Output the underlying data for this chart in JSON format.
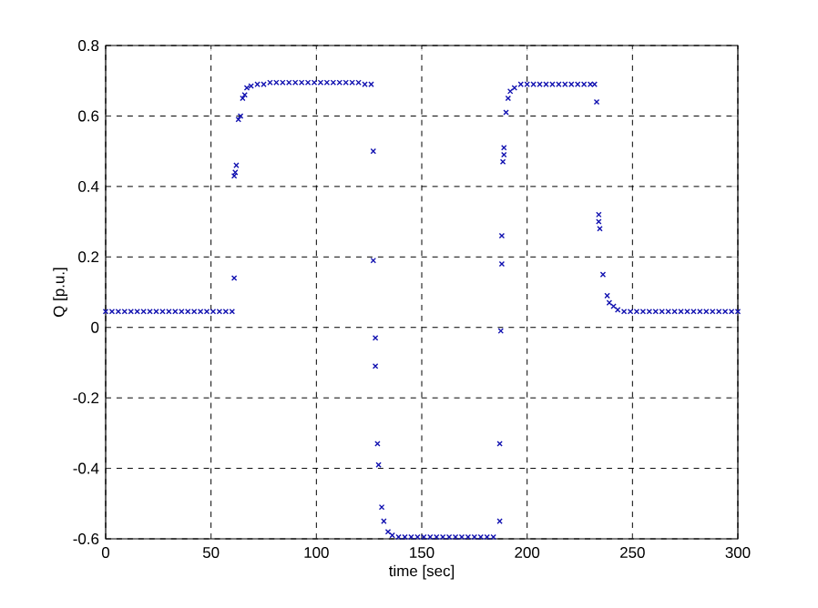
{
  "chart_data": {
    "type": "scatter",
    "xlabel": "time [sec]",
    "ylabel": "Q [p.u.]",
    "xlim": [
      0,
      300
    ],
    "ylim": [
      -0.6,
      0.8
    ],
    "xticks": [
      0,
      50,
      100,
      150,
      200,
      250,
      300
    ],
    "yticks": [
      -0.6,
      -0.4,
      -0.2,
      0,
      0.2,
      0.4,
      0.6,
      0.8
    ],
    "grid": true,
    "marker": "cross",
    "series": [
      {
        "color": "#1010b0",
        "x": [
          0,
          3,
          6,
          9,
          12,
          15,
          18,
          21,
          24,
          27,
          30,
          33,
          36,
          39,
          42,
          45,
          48,
          51,
          54,
          57,
          60,
          61,
          61,
          61.5,
          62,
          63,
          64,
          65,
          66,
          67,
          69,
          72,
          75,
          78,
          81,
          84,
          87,
          90,
          93,
          96,
          99,
          102,
          105,
          108,
          111,
          114,
          117,
          120,
          123,
          126,
          127,
          127,
          128,
          128,
          129,
          129.5,
          131,
          132,
          134,
          136,
          139,
          142,
          145,
          148,
          151,
          154,
          157,
          160,
          163,
          166,
          169,
          172,
          175,
          178,
          181,
          184,
          187,
          187,
          187.5,
          188,
          188,
          188.5,
          189,
          189,
          190,
          191,
          192,
          194,
          197,
          200,
          203,
          206,
          209,
          212,
          215,
          218,
          221,
          224,
          227,
          230,
          232,
          233,
          234,
          234,
          234.5,
          236,
          238,
          239,
          241,
          243,
          246,
          249,
          252,
          255,
          258,
          261,
          264,
          267,
          270,
          273,
          276,
          279,
          282,
          285,
          288,
          291,
          294,
          297,
          300
        ],
        "values": [
          0.045,
          0.045,
          0.045,
          0.045,
          0.045,
          0.045,
          0.045,
          0.045,
          0.045,
          0.045,
          0.045,
          0.045,
          0.045,
          0.045,
          0.045,
          0.045,
          0.045,
          0.045,
          0.045,
          0.045,
          0.045,
          0.14,
          0.43,
          0.44,
          0.46,
          0.59,
          0.6,
          0.65,
          0.66,
          0.68,
          0.685,
          0.69,
          0.69,
          0.695,
          0.695,
          0.695,
          0.695,
          0.695,
          0.695,
          0.695,
          0.695,
          0.695,
          0.695,
          0.695,
          0.695,
          0.695,
          0.695,
          0.695,
          0.69,
          0.69,
          0.5,
          0.19,
          -0.03,
          -0.11,
          -0.33,
          -0.39,
          -0.51,
          -0.55,
          -0.58,
          -0.59,
          -0.595,
          -0.595,
          -0.595,
          -0.595,
          -0.595,
          -0.595,
          -0.595,
          -0.595,
          -0.595,
          -0.595,
          -0.595,
          -0.595,
          -0.595,
          -0.595,
          -0.595,
          -0.595,
          -0.55,
          -0.33,
          -0.01,
          0.18,
          0.26,
          0.47,
          0.49,
          0.51,
          0.61,
          0.65,
          0.67,
          0.68,
          0.69,
          0.69,
          0.69,
          0.69,
          0.69,
          0.69,
          0.69,
          0.69,
          0.69,
          0.69,
          0.69,
          0.69,
          0.69,
          0.64,
          0.32,
          0.3,
          0.28,
          0.15,
          0.09,
          0.07,
          0.06,
          0.05,
          0.045,
          0.045,
          0.045,
          0.045,
          0.045,
          0.045,
          0.045,
          0.045,
          0.045,
          0.045,
          0.045,
          0.045,
          0.045,
          0.045,
          0.045,
          0.045,
          0.045,
          0.045,
          0.045
        ]
      }
    ]
  }
}
